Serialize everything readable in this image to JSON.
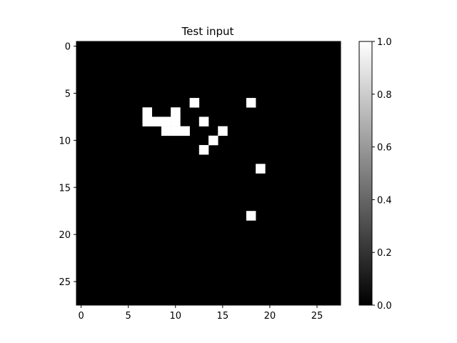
{
  "chart_data": {
    "type": "heatmap",
    "title": "Test input",
    "colormap": "gray",
    "rows": 28,
    "cols": 28,
    "vmin": 0.0,
    "vmax": 1.0,
    "x_ticks": [
      0,
      5,
      10,
      15,
      20,
      25
    ],
    "y_ticks": [
      0,
      5,
      10,
      15,
      20,
      25
    ],
    "colorbar_ticks": [
      "0.0",
      "0.2",
      "0.4",
      "0.6",
      "0.8",
      "1.0"
    ],
    "values_encoding": "one string per row; '1' = value 1.0 (white), '0' = value 0.0 (black)",
    "values": [
      "0000000000000000000000000000",
      "0000000000000000000000000000",
      "0000000000000000000000000000",
      "0000000000000000000000000000",
      "0000000000000000000000000000",
      "0000000000000000000000000000",
      "0000000000001000001000000000",
      "0000000100100000000000000000",
      "0000000111100100000000000000",
      "0000000001110001000000000000",
      "0000000000000010000000000000",
      "0000000000000100000000000000",
      "0000000000000000000000000000",
      "0000000000000000000100000000",
      "0000000000000000000000000000",
      "0000000000000000000000000000",
      "0000000000000000000000000000",
      "0000000000000000000000000000",
      "0000000000000000001000000000",
      "0000000000000000000000000000",
      "0000000000000000000000000000",
      "0000000000000000000000000000",
      "0000000000000000000000000000",
      "0000000000000000000000000000",
      "0000000000000000000000000000",
      "0000000000000000000000000000",
      "0000000000000000000000000000",
      "0000000000000000000000000000"
    ]
  }
}
